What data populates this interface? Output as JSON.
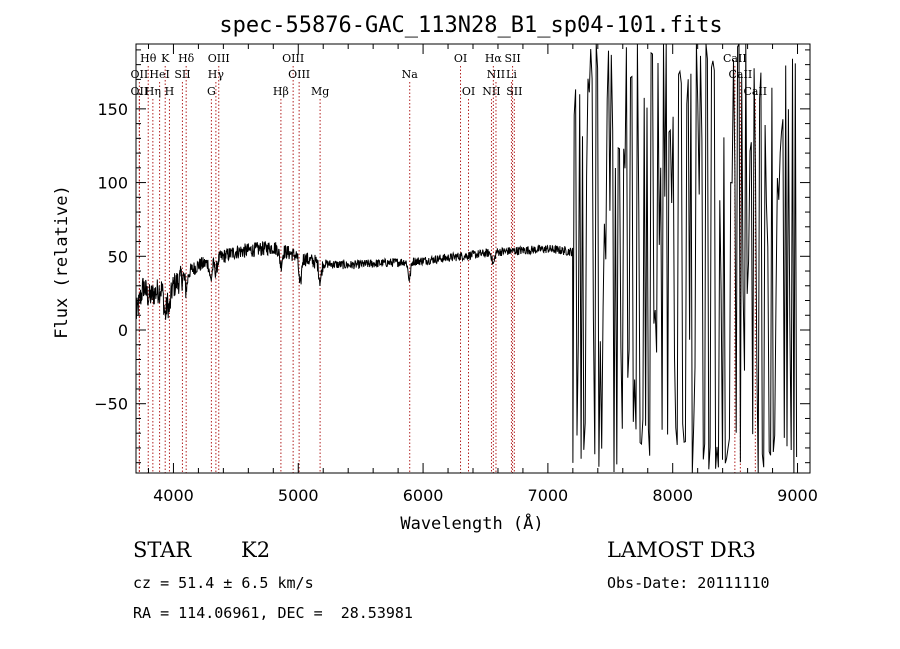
{
  "chart_data": {
    "type": "line",
    "title": "spec-55876-GAC_113N28_B1_sp04-101.fits",
    "xlabel": "Wavelength (Å)",
    "ylabel": "Flux (relative)",
    "xlim": [
      3700,
      9100
    ],
    "ylim": [
      -97,
      194
    ],
    "x_ticks": [
      4000,
      5000,
      6000,
      7000,
      8000,
      9000
    ],
    "y_ticks": [
      -50,
      0,
      50,
      100,
      150
    ],
    "x_tick_labels": [
      "4000",
      "5000",
      "6000",
      "7000",
      "8000",
      "9000"
    ],
    "y_tick_labels": [
      "−50",
      "0",
      "50",
      "100",
      "150"
    ],
    "spectrum": {
      "description": "flux vs wavelength",
      "anchors_x": [
        3700,
        3760,
        3800,
        3850,
        3900,
        3950,
        4000,
        4100,
        4200,
        4300,
        4400,
        4500,
        4600,
        4700,
        4800,
        4900,
        5000,
        5100,
        5200,
        5400,
        5600,
        5800,
        6000,
        6200,
        6400,
        6600,
        6800,
        7000,
        7200
      ],
      "anchors_y": [
        10,
        30,
        22,
        25,
        28,
        24,
        30,
        38,
        44,
        46,
        50,
        53,
        54,
        55,
        56,
        53,
        50,
        47,
        45,
        44,
        45,
        46,
        47,
        49,
        51,
        53,
        54,
        55,
        53
      ],
      "absorption_dips": [
        {
          "x": 3934,
          "depth": 15
        },
        {
          "x": 3968,
          "depth": 12
        },
        {
          "x": 4102,
          "depth": 10
        },
        {
          "x": 4300,
          "depth": 12
        },
        {
          "x": 4340,
          "depth": 8
        },
        {
          "x": 4861,
          "depth": 10
        },
        {
          "x": 5015,
          "depth": 20
        },
        {
          "x": 5175,
          "depth": 12
        },
        {
          "x": 5890,
          "depth": 12
        },
        {
          "x": 6563,
          "depth": 8
        }
      ],
      "noisy_region_start": 7200,
      "noisy_region_end": 9000
    },
    "lines": [
      {
        "label": "Hθ",
        "x": 3798,
        "row": 1
      },
      {
        "label": "K",
        "x": 3934,
        "row": 1
      },
      {
        "label": "Hδ",
        "x": 4102,
        "row": 1
      },
      {
        "label": "OIII",
        "x": 4363,
        "row": 1
      },
      {
        "label": "OIII",
        "x": 4959,
        "row": 1
      },
      {
        "label": "OI",
        "x": 6300,
        "row": 1
      },
      {
        "label": "Hα",
        "x": 6563,
        "row": 1
      },
      {
        "label": "SII",
        "x": 6717,
        "row": 1
      },
      {
        "label": "CaII",
        "x": 8498,
        "row": 1
      },
      {
        "label": "OII",
        "x": 3727,
        "row": 2
      },
      {
        "label": "HeI",
        "x": 3889,
        "row": 2
      },
      {
        "label": "SII",
        "x": 4072,
        "row": 2
      },
      {
        "label": "Hγ",
        "x": 4340,
        "row": 2
      },
      {
        "label": "OIII",
        "x": 5007,
        "row": 2
      },
      {
        "label": "Na",
        "x": 5893,
        "row": 2
      },
      {
        "label": "NII",
        "x": 6584,
        "row": 2
      },
      {
        "label": "Li",
        "x": 6708,
        "row": 2
      },
      {
        "label": "CaII",
        "x": 8542,
        "row": 2
      },
      {
        "label": "OII",
        "x": 3727,
        "row": 3
      },
      {
        "label": "Hη",
        "x": 3835,
        "row": 3
      },
      {
        "label": "H",
        "x": 3968,
        "row": 3
      },
      {
        "label": "G",
        "x": 4304,
        "row": 3
      },
      {
        "label": "Hβ",
        "x": 4861,
        "row": 3
      },
      {
        "label": "Mg",
        "x": 5175,
        "row": 3
      },
      {
        "label": "OI",
        "x": 6364,
        "row": 3
      },
      {
        "label": "NII",
        "x": 6548,
        "row": 3
      },
      {
        "label": "SII",
        "x": 6731,
        "row": 3
      },
      {
        "label": "CaII",
        "x": 8662,
        "row": 3
      }
    ]
  },
  "footer": {
    "object_class": "STAR",
    "subclass": "K2",
    "survey": "LAMOST DR3",
    "redshift_line": "cz = 51.4 ± 6.5 km/s",
    "obs_date_line": "Obs-Date: 20111110",
    "coords_line": "RA = 114.06961, DEC =  28.53981"
  },
  "colors": {
    "spectrum": "#000000",
    "line_markers": "#b22222",
    "axes": "#000000",
    "background": "#ffffff"
  }
}
